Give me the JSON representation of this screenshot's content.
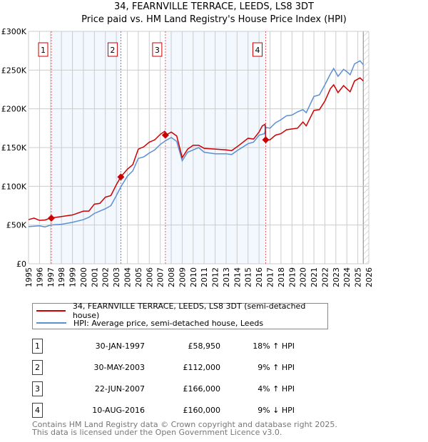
{
  "chart_data": {
    "type": "line",
    "title": "34, FEARNVILLE TERRACE, LEEDS, LS8 3DT",
    "subtitle": "Price paid vs. HM Land Registry's House Price Index (HPI)",
    "xlim": [
      1995,
      2026
    ],
    "ylim": [
      0,
      300000
    ],
    "x_ticks": [
      "1995",
      "1996",
      "1997",
      "1998",
      "1999",
      "2000",
      "2001",
      "2002",
      "2003",
      "2004",
      "2005",
      "2006",
      "2007",
      "2008",
      "2009",
      "2010",
      "2011",
      "2012",
      "2013",
      "2014",
      "2015",
      "2016",
      "2017",
      "2018",
      "2019",
      "2020",
      "2021",
      "2022",
      "2023",
      "2024",
      "2025",
      "2026"
    ],
    "y_ticks": [
      {
        "v": 0,
        "l": "£0"
      },
      {
        "v": 50000,
        "l": "£50K"
      },
      {
        "v": 100000,
        "l": "£100K"
      },
      {
        "v": 150000,
        "l": "£150K"
      },
      {
        "v": 200000,
        "l": "£200K"
      },
      {
        "v": 250000,
        "l": "£250K"
      },
      {
        "v": 300000,
        "l": "£300K"
      }
    ],
    "grid": true,
    "shaded_ranges": [
      [
        1997.08,
        2003.41
      ],
      [
        2007.47,
        2016.61
      ]
    ],
    "forecast_from": 2025.5,
    "series": [
      {
        "name": "34, FEARNVILLE TERRACE, LEEDS, LS8 3DT (semi-detached house)",
        "color": "#cc0000",
        "x": [
          1995,
          1995.5,
          1996,
          1996.5,
          1997,
          1998,
          1999,
          2000,
          2000.5,
          2001,
          2001.5,
          2002,
          2002.5,
          2003,
          2003.4,
          2004,
          2004.5,
          2005,
          2005.5,
          2006,
          2006.5,
          2007,
          2007.4,
          2007.5,
          2008,
          2008.5,
          2009,
          2009.5,
          2010,
          2010.5,
          2011,
          2012,
          2013,
          2013.5,
          2014,
          2015,
          2015.5,
          2016,
          2016.3,
          2016.55,
          2016.61,
          2017,
          2017.5,
          2018,
          2018.5,
          2019,
          2019.5,
          2020,
          2020.3,
          2021,
          2021.5,
          2022,
          2022.5,
          2022.8,
          2023.2,
          2023.7,
          2024,
          2024.3,
          2024.7,
          2025.2,
          2025.5
        ],
        "y": [
          57000,
          59000,
          56000,
          56500,
          59000,
          61000,
          63000,
          68000,
          68000,
          77000,
          78000,
          86000,
          88000,
          102000,
          112000,
          122000,
          128000,
          148000,
          151000,
          157000,
          160000,
          167000,
          171000,
          166000,
          170000,
          165000,
          137000,
          148000,
          153000,
          153000,
          149000,
          148000,
          147000,
          146000,
          151000,
          162000,
          161000,
          170000,
          178000,
          180000,
          160000,
          160000,
          166000,
          168000,
          173000,
          174000,
          175000,
          183000,
          178000,
          198000,
          199000,
          210000,
          226000,
          231000,
          221000,
          230000,
          226000,
          222000,
          236000,
          240000,
          236000
        ]
      },
      {
        "name": "HPI: Average price, semi-detached house, Leeds",
        "color": "#5b8fd4",
        "x": [
          1995,
          1996,
          1996.5,
          1997,
          1998,
          1999,
          2000,
          2000.5,
          2001,
          2002,
          2002.5,
          2003,
          2003.4,
          2004,
          2004.5,
          2005,
          2005.5,
          2006,
          2006.5,
          2007,
          2007.5,
          2008,
          2008.5,
          2009,
          2009.5,
          2010,
          2010.5,
          2011,
          2012,
          2013,
          2013.5,
          2014,
          2015,
          2015.5,
          2016,
          2016.5,
          2016.65,
          2017,
          2017.5,
          2018,
          2018.5,
          2019,
          2019.5,
          2020,
          2020.3,
          2021,
          2021.5,
          2022,
          2022.5,
          2022.8,
          2023.2,
          2023.7,
          2024,
          2024.3,
          2024.7,
          2025.2,
          2025.5
        ],
        "y": [
          48000,
          49000,
          47500,
          50000,
          51000,
          53500,
          57000,
          60000,
          65000,
          71000,
          75000,
          88000,
          99000,
          113000,
          120000,
          136000,
          138000,
          143000,
          147000,
          154000,
          159000,
          163000,
          158000,
          133000,
          144000,
          147000,
          150000,
          144000,
          142000,
          142000,
          141000,
          146000,
          155000,
          157000,
          166000,
          168000,
          176000,
          175000,
          182000,
          186000,
          191000,
          192000,
          196000,
          199000,
          195000,
          216000,
          218000,
          231000,
          245000,
          252000,
          242000,
          251000,
          248000,
          244000,
          258000,
          262000,
          257000
        ]
      }
    ],
    "sales": [
      {
        "n": "1",
        "x": 2003.41,
        "date": "30-JAN-1997",
        "price": "£58,950",
        "hpi": "18% ↑ HPI",
        "xv": 1997.08,
        "yv": 58950
      },
      {
        "n": "2",
        "date": "30-MAY-2003",
        "price": "£112,000",
        "hpi": "9% ↑ HPI",
        "xv": 2003.41,
        "yv": 112000
      },
      {
        "n": "3",
        "date": "22-JUN-2007",
        "price": "£166,000",
        "hpi": "4% ↑ HPI",
        "xv": 2007.47,
        "yv": 166000
      },
      {
        "n": "4",
        "date": "10-AUG-2016",
        "price": "£160,000",
        "hpi": "9% ↓ HPI",
        "xv": 2016.61,
        "yv": 160000
      }
    ]
  },
  "footer": [
    "Contains HM Land Registry data © Crown copyright and database right 2025.",
    "This data is licensed under the Open Government Licence v3.0."
  ]
}
